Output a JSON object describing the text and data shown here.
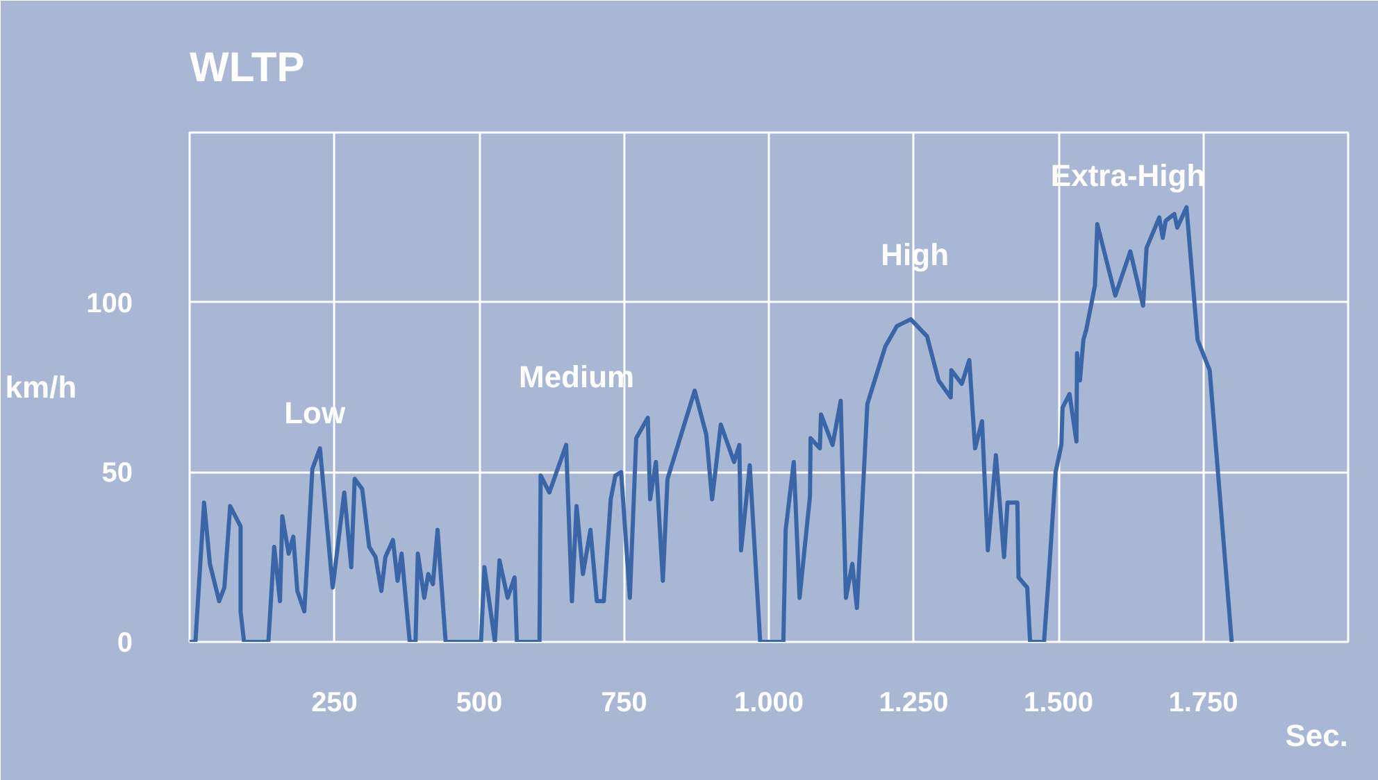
{
  "chart_data": {
    "type": "line",
    "title": "WLTP",
    "xlabel": "Sec.",
    "ylabel": "km/h",
    "x": [
      0,
      10,
      25,
      35,
      51,
      60,
      70,
      88,
      88,
      94,
      136,
      146,
      156,
      160,
      171,
      179,
      186,
      198,
      212,
      225,
      247,
      267,
      279,
      285,
      298,
      310,
      321,
      331,
      338,
      351,
      359,
      366,
      380,
      390,
      394,
      405,
      412,
      420,
      428,
      442,
      503,
      509,
      527,
      535,
      549,
      561,
      565,
      604,
      606,
      621,
      650,
      660,
      668,
      679,
      692,
      703,
      715,
      727,
      735,
      745,
      760,
      771,
      791,
      795,
      805,
      817,
      825,
      872,
      892,
      902,
      917,
      940,
      949,
      952,
      967,
      985,
      1025,
      1029,
      1043,
      1053,
      1071,
      1072,
      1088,
      1090,
      1110,
      1124,
      1133,
      1144,
      1152,
      1170,
      1179,
      1201,
      1221,
      1245,
      1273,
      1293,
      1314,
      1315,
      1333,
      1346,
      1356,
      1368,
      1378,
      1392,
      1406,
      1412,
      1429,
      1431,
      1446,
      1451,
      1475,
      1483,
      1495,
      1505,
      1507,
      1519,
      1531,
      1532,
      1537,
      1543,
      1548,
      1563,
      1567,
      1598,
      1624,
      1646,
      1652,
      1674,
      1680,
      1685,
      1700,
      1705,
      1721,
      1740,
      1761,
      1799
    ],
    "series": [
      {
        "color": "#3a66a8",
        "values": [
          0,
          0,
          41,
          23,
          12,
          16,
          40,
          34,
          9,
          0,
          0,
          28,
          12,
          37,
          26,
          31,
          15,
          9,
          51,
          57,
          16,
          44,
          22,
          48,
          45,
          28,
          25,
          15,
          25,
          30,
          18,
          26,
          0,
          0,
          26,
          13,
          20,
          17,
          33,
          0,
          0,
          22,
          0,
          24,
          13,
          19,
          0,
          0,
          49,
          44,
          58,
          12,
          40,
          20,
          33,
          12,
          12,
          42,
          49,
          50,
          13,
          60,
          66,
          42,
          53,
          18,
          48,
          74,
          61,
          42,
          64,
          53,
          58,
          27,
          52,
          0,
          0,
          33,
          53,
          13,
          43,
          60,
          57,
          67,
          58,
          71,
          13,
          23,
          10,
          70,
          75,
          87,
          93,
          95,
          90,
          77,
          72,
          80,
          76,
          83,
          57,
          65,
          27,
          55,
          25,
          41,
          41,
          19,
          16,
          0,
          0,
          19,
          50,
          58,
          69,
          73,
          59,
          85,
          77,
          89,
          92,
          105,
          123,
          102,
          115,
          99,
          116,
          125,
          119,
          124,
          126,
          122,
          128,
          89,
          80,
          0
        ]
      }
    ],
    "xlim": [
      0,
      2000
    ],
    "ylim": [
      0,
      150
    ],
    "xticks": [
      {
        "value": 250,
        "label": "250"
      },
      {
        "value": 500,
        "label": "500"
      },
      {
        "value": 750,
        "label": "750"
      },
      {
        "value": 1000,
        "label": "1.000"
      },
      {
        "value": 1250,
        "label": "1.250"
      },
      {
        "value": 1500,
        "label": "1.500"
      },
      {
        "value": 1750,
        "label": "1.750"
      }
    ],
    "yticks": [
      0,
      50,
      100,
      {
        "value": 150,
        "label": null
      }
    ],
    "grid": true,
    "line_style": "solid",
    "annotations": [
      "Low",
      "Medium",
      "High",
      "Extra-High"
    ]
  }
}
